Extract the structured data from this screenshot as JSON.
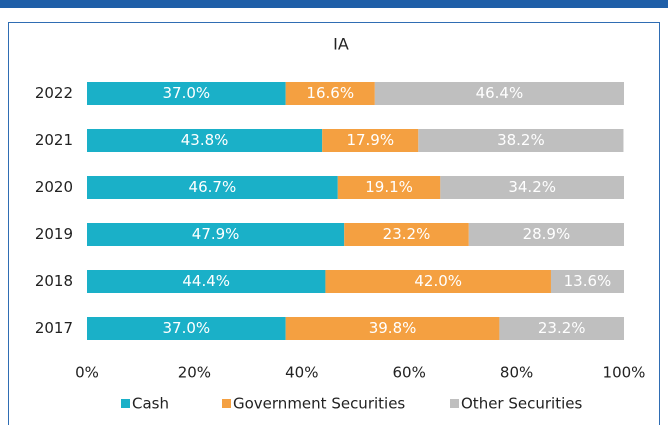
{
  "chart_data": {
    "type": "stacked-barh",
    "title": "IA",
    "categories": [
      "2022",
      "2021",
      "2020",
      "2019",
      "2018",
      "2017"
    ],
    "series": [
      {
        "name": "Cash",
        "color": "#1ab0c8",
        "values": [
          37.0,
          43.8,
          46.7,
          47.9,
          44.4,
          37.0
        ],
        "value_labels": [
          "37.0%",
          "43.8%",
          "46.7%",
          "47.9%",
          "44.4%",
          "37.0%"
        ]
      },
      {
        "name": "Government Securities",
        "color": "#f4a041",
        "values": [
          16.6,
          17.9,
          19.1,
          23.2,
          42.0,
          39.8
        ],
        "value_labels": [
          "16.6%",
          "17.9%",
          "19.1%",
          "23.2%",
          "42.0%",
          "39.8%"
        ]
      },
      {
        "name": "Other Securities",
        "color": "#bfbfbf",
        "values": [
          46.4,
          38.2,
          34.2,
          28.9,
          13.6,
          23.2
        ],
        "value_labels": [
          "46.4%",
          "38.2%",
          "34.2%",
          "28.9%",
          "13.6%",
          "23.2%"
        ]
      }
    ],
    "xlim": [
      0,
      100
    ],
    "xticks": [
      {
        "value": 0,
        "label": "0%"
      },
      {
        "value": 20,
        "label": "20%"
      },
      {
        "value": 40,
        "label": "40%"
      },
      {
        "value": 60,
        "label": "60%"
      },
      {
        "value": 80,
        "label": "80%"
      },
      {
        "value": 100,
        "label": "100%"
      }
    ],
    "legend": "bottom"
  }
}
